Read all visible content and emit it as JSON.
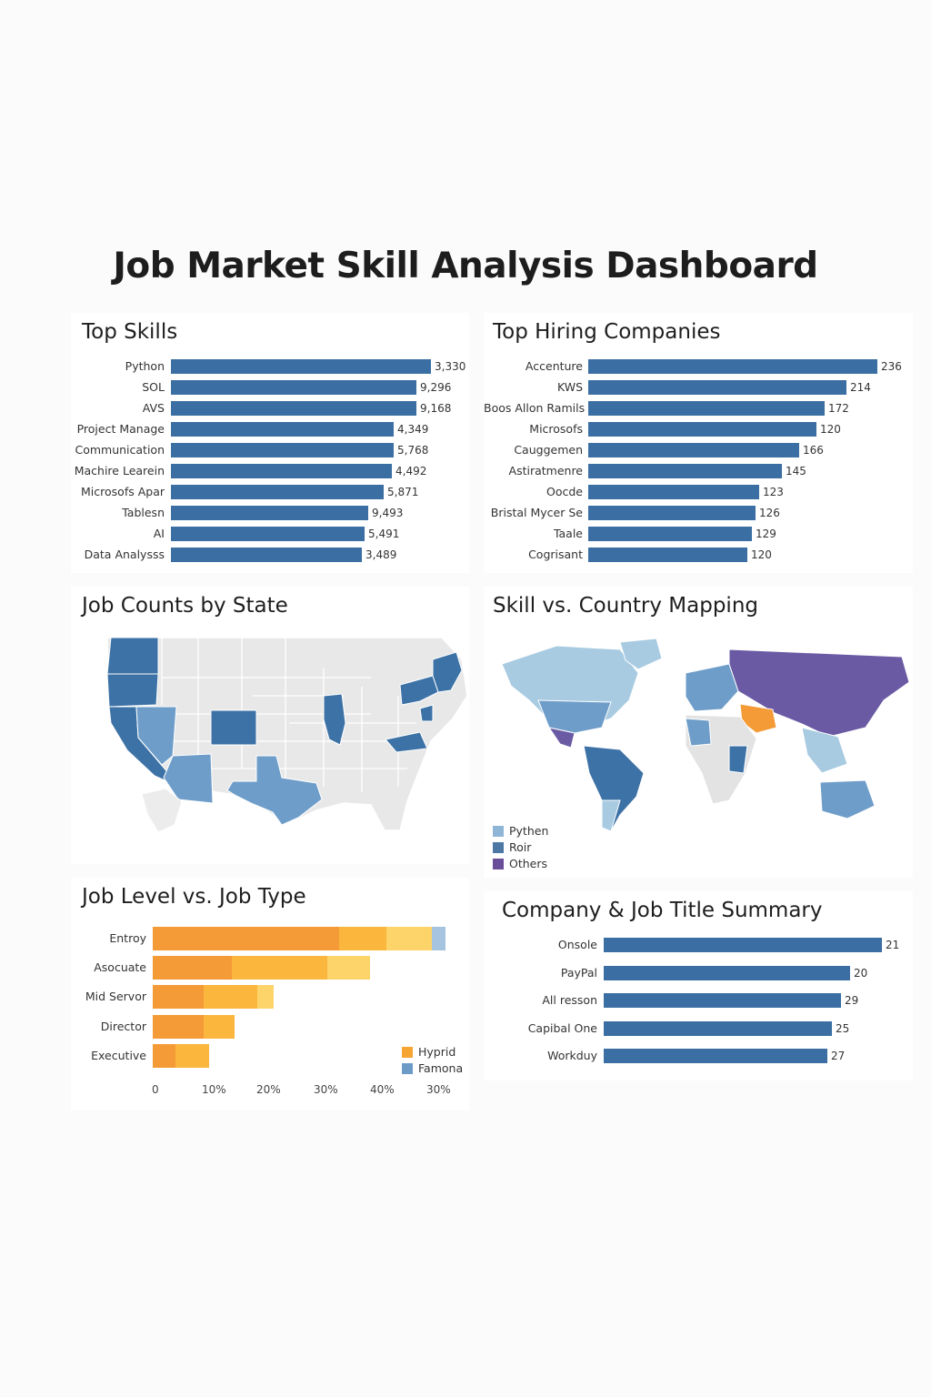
{
  "dashboard": {
    "title": "Job Market Skill Analysis Dashboard"
  },
  "colors": {
    "bar_blue": "#3b6fa3",
    "map_dark": "#3d72a6",
    "map_mid": "#6e9dc9",
    "map_light": "#a8cbe2",
    "map_grey": "#e6e6e6",
    "purple": "#6a5aa4",
    "orange_dark": "#f49a36",
    "orange_mid": "#fbb63e",
    "orange_light": "#fcd46a"
  },
  "top_skills": {
    "title": "Top Skills",
    "chart_data": {
      "type": "bar",
      "categories": [
        "Python",
        "SOL",
        "AVS",
        "Project Manage",
        "Communication",
        "Machire Learein",
        "Microsofs Apar",
        "Tablesn",
        "AI",
        "Data Analysss"
      ],
      "value_labels": [
        "3,330",
        "9,296",
        "9,168",
        "4,349",
        "5,768",
        "4,492",
        "5,871",
        "9,493",
        "5,491",
        "3,489"
      ],
      "bar_lengths": [
        1.0,
        0.945,
        0.944,
        0.857,
        0.857,
        0.851,
        0.819,
        0.757,
        0.745,
        0.733
      ]
    }
  },
  "top_companies": {
    "title": "Top Hiring Companies",
    "chart_data": {
      "type": "bar",
      "categories": [
        "Accenture",
        "KWS",
        "Boos Allon Ramils",
        "Microsofs",
        "Cauggemen",
        "Astiratmenre",
        "Oocde",
        "Bristal Mycer Se",
        "Taale",
        "Cogrisant"
      ],
      "values": [
        236,
        214,
        172,
        120,
        166,
        145,
        123,
        126,
        129,
        120
      ],
      "bar_lengths": [
        1.0,
        0.893,
        0.817,
        0.79,
        0.731,
        0.671,
        0.592,
        0.579,
        0.567,
        0.55
      ]
    }
  },
  "job_counts_state": {
    "title": "Job Counts by State"
  },
  "skill_country": {
    "title": "Skill vs. Country Mapping",
    "legend": [
      {
        "label": "Pythen",
        "color": "#8fb6d6"
      },
      {
        "label": "Roir",
        "color": "#4d78a3"
      },
      {
        "label": "Others",
        "color": "#6a4e9a"
      }
    ]
  },
  "job_level_type": {
    "title": "Job Level vs. Job Type",
    "chart_data": {
      "type": "bar",
      "categories": [
        "Entroy",
        "Asocuate",
        "Mid Servor",
        "Director",
        "Executive"
      ],
      "series": [
        {
          "name": "",
          "values": [
            33,
            14,
            9,
            9,
            4
          ]
        },
        {
          "name": "",
          "values": [
            8.5,
            17,
            9.5,
            5.5,
            6
          ]
        },
        {
          "name": "",
          "values": [
            8,
            7.5,
            3,
            0,
            0
          ]
        },
        {
          "name": "",
          "values": [
            2.5,
            0,
            0,
            0,
            0
          ]
        }
      ],
      "xticks": [
        "0",
        "10%",
        "20%",
        "30%",
        "40%",
        "30%"
      ],
      "legend": [
        {
          "label": "Hyprid",
          "color": "#f7a532"
        },
        {
          "label": "Famona",
          "color": "#6d9bc8"
        }
      ]
    }
  },
  "company_summary": {
    "title": "Company & Job Title Summary",
    "chart_data": {
      "type": "bar",
      "categories": [
        "Onsole",
        "PayPal",
        "All resson",
        "Capibal One",
        "Workduy"
      ],
      "values": [
        21,
        20,
        29,
        25,
        27
      ],
      "bar_lengths": [
        1.0,
        0.886,
        0.853,
        0.821,
        0.805
      ]
    }
  }
}
